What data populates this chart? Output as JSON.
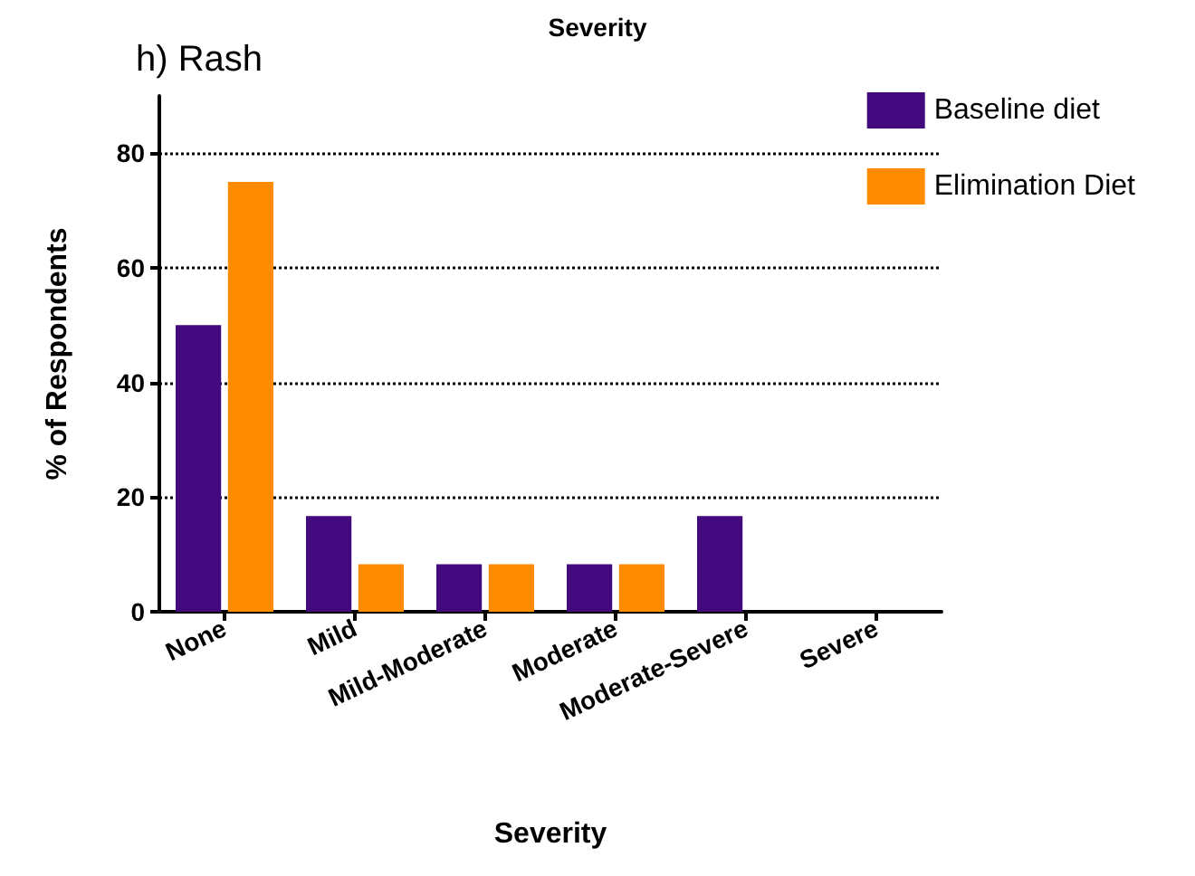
{
  "chart_data": {
    "type": "bar",
    "title": "h) Rash",
    "xlabel": "Severity",
    "ylabel": "% of Respondents",
    "annotations": [
      "Severity"
    ],
    "categories": [
      "None",
      "Mild",
      "Mild-Moderate",
      "Moderate",
      "Moderate-Severe",
      "Severe"
    ],
    "series": [
      {
        "name": "Baseline diet",
        "color": "#43097f",
        "values": [
          50,
          16.7,
          8.3,
          8.3,
          16.7,
          0
        ]
      },
      {
        "name": "Elimination Diet",
        "color": "#ff8c00",
        "values": [
          75,
          8.3,
          8.3,
          8.3,
          0,
          0
        ]
      }
    ],
    "ylim": [
      0,
      90
    ],
    "yticks": [
      0,
      20,
      40,
      60,
      80
    ],
    "grid": "y",
    "legend": "top right"
  }
}
